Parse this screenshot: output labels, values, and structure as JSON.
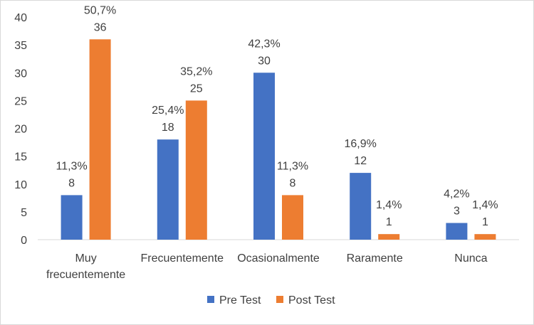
{
  "chart_data": {
    "type": "bar",
    "title": "",
    "xlabel": "",
    "ylabel": "",
    "ylim": [
      0,
      40
    ],
    "yticks": [
      0,
      5,
      10,
      15,
      20,
      25,
      30,
      35,
      40
    ],
    "grid": false,
    "legend_position": "bottom",
    "categories": [
      [
        "Muy",
        "frecuentemente"
      ],
      [
        "Frecuentemente"
      ],
      [
        "Ocasionalmente"
      ],
      [
        "Raramente"
      ],
      [
        "Nunca"
      ]
    ],
    "series": [
      {
        "name": "Pre Test",
        "color": "#4472c4",
        "values": [
          8,
          18,
          30,
          12,
          3
        ],
        "percent_labels": [
          "11,3%",
          "25,4%",
          "42,3%",
          "16,9%",
          "4,2%"
        ]
      },
      {
        "name": "Post Test",
        "color": "#ed7d31",
        "values": [
          36,
          25,
          8,
          1,
          1
        ],
        "percent_labels": [
          "50,7%",
          "35,2%",
          "11,3%",
          "1,4%",
          "1,4%"
        ]
      }
    ]
  }
}
